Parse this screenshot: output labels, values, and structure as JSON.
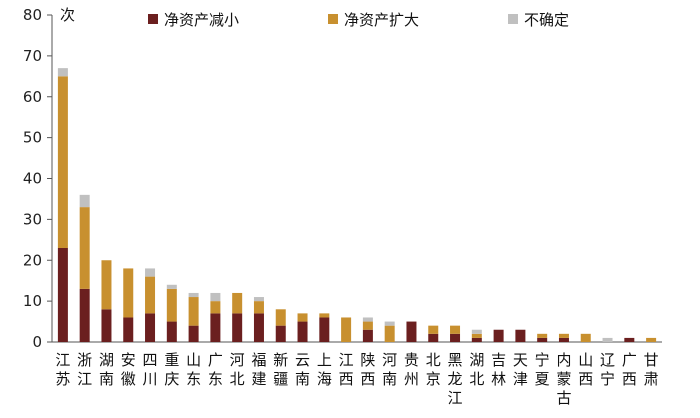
{
  "chart_data": {
    "type": "bar",
    "stacked": true,
    "unit_label": "次",
    "ylim": [
      0,
      80
    ],
    "yticks": [
      0,
      10,
      20,
      30,
      40,
      50,
      60,
      70,
      80
    ],
    "legend_position": "top",
    "categories": [
      "江苏",
      "浙江",
      "湖南",
      "安徽",
      "四川",
      "重庆",
      "山东",
      "广东",
      "河北",
      "福建",
      "新疆",
      "云南",
      "上海",
      "江西",
      "陕西",
      "河南",
      "贵州",
      "北京",
      "黑龙江",
      "湖北",
      "吉林",
      "天津",
      "宁夏",
      "内蒙古",
      "山西",
      "辽宁",
      "广西",
      "甘肃"
    ],
    "category_lines": [
      [
        "江",
        "苏"
      ],
      [
        "浙",
        "江"
      ],
      [
        "湖",
        "南"
      ],
      [
        "安",
        "徽"
      ],
      [
        "四",
        "川"
      ],
      [
        "重",
        "庆"
      ],
      [
        "山",
        "东"
      ],
      [
        "广",
        "东"
      ],
      [
        "河",
        "北"
      ],
      [
        "福",
        "建"
      ],
      [
        "新",
        "疆"
      ],
      [
        "云",
        "南"
      ],
      [
        "上",
        "海"
      ],
      [
        "江",
        "西"
      ],
      [
        "陕",
        "西"
      ],
      [
        "河",
        "南"
      ],
      [
        "贵",
        "州"
      ],
      [
        "北",
        "京"
      ],
      [
        "黑",
        "龙",
        "江"
      ],
      [
        "湖",
        "北"
      ],
      [
        "吉",
        "林"
      ],
      [
        "天",
        "津"
      ],
      [
        "宁",
        "夏"
      ],
      [
        "内",
        "蒙",
        "古"
      ],
      [
        "山",
        "西"
      ],
      [
        "辽",
        "宁"
      ],
      [
        "广",
        "西"
      ],
      [
        "甘",
        "肃"
      ]
    ],
    "series": [
      {
        "name": "净资产减小",
        "color": "#6b1f1f",
        "values": [
          23,
          13,
          8,
          6,
          7,
          5,
          4,
          7,
          7,
          7,
          4,
          5,
          6,
          0,
          3,
          0,
          5,
          2,
          2,
          1,
          3,
          3,
          1,
          1,
          0,
          0,
          1,
          0
        ]
      },
      {
        "name": "净资产扩大",
        "color": "#c8902f",
        "values": [
          42,
          20,
          12,
          12,
          9,
          8,
          7,
          3,
          5,
          3,
          4,
          2,
          1,
          6,
          2,
          4,
          0,
          2,
          2,
          1,
          0,
          0,
          1,
          1,
          2,
          0,
          0,
          1
        ]
      },
      {
        "name": "不确定",
        "color": "#c0c0c0",
        "values": [
          2,
          3,
          0,
          0,
          2,
          1,
          1,
          2,
          0,
          1,
          0,
          0,
          0,
          0,
          1,
          1,
          0,
          0,
          0,
          1,
          0,
          0,
          0,
          0,
          0,
          1,
          0,
          0
        ]
      }
    ]
  }
}
